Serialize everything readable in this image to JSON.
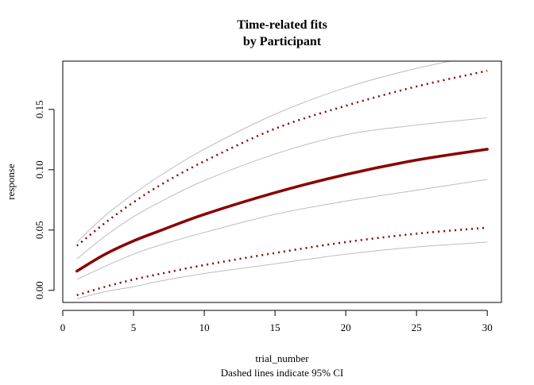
{
  "chart_data": {
    "type": "line",
    "title": "Time-related fits",
    "subtitle": "by Participant",
    "xlabel": "trial_number",
    "ylabel": "response",
    "caption": "Dashed lines indicate 95% CI",
    "xlim": [
      0,
      31
    ],
    "ylim": [
      -0.01,
      0.19
    ],
    "x_ticks": [
      0,
      5,
      10,
      15,
      20,
      25,
      30
    ],
    "x_tick_labels": [
      "0",
      "5",
      "10",
      "15",
      "20",
      "25",
      "30"
    ],
    "y_ticks": [
      0.0,
      0.05,
      0.1,
      0.15
    ],
    "y_tick_labels": [
      "0.00",
      "0.05",
      "0.10",
      "0.15"
    ],
    "grid": false,
    "colors": {
      "fit": "#8b0000",
      "ci": "#8b0000",
      "participant": "#bdbdbd"
    },
    "x": [
      1,
      3,
      5,
      7,
      10,
      15,
      20,
      25,
      30
    ],
    "series": [
      {
        "role": "fit",
        "style": "solid-thick",
        "values": [
          0.016,
          0.03,
          0.041,
          0.05,
          0.063,
          0.081,
          0.096,
          0.108,
          0.117
        ]
      },
      {
        "role": "ci-upper",
        "style": "dotted",
        "values": [
          0.037,
          0.056,
          0.073,
          0.088,
          0.107,
          0.134,
          0.153,
          0.169,
          0.182
        ]
      },
      {
        "role": "ci-lower",
        "style": "dotted",
        "values": [
          -0.004,
          0.003,
          0.009,
          0.014,
          0.021,
          0.031,
          0.04,
          0.047,
          0.052
        ]
      },
      {
        "role": "participant",
        "style": "thin",
        "values": [
          0.04,
          0.062,
          0.08,
          0.096,
          0.117,
          0.146,
          0.168,
          0.184,
          0.196
        ]
      },
      {
        "role": "participant",
        "style": "thin",
        "values": [
          0.026,
          0.045,
          0.061,
          0.074,
          0.091,
          0.113,
          0.129,
          0.137,
          0.143
        ]
      },
      {
        "role": "participant",
        "style": "thin",
        "values": [
          0.009,
          0.02,
          0.03,
          0.038,
          0.048,
          0.063,
          0.074,
          0.083,
          0.092
        ]
      },
      {
        "role": "participant",
        "style": "thin",
        "values": [
          -0.007,
          -0.001,
          0.003,
          0.008,
          0.014,
          0.022,
          0.03,
          0.036,
          0.04
        ]
      }
    ]
  }
}
